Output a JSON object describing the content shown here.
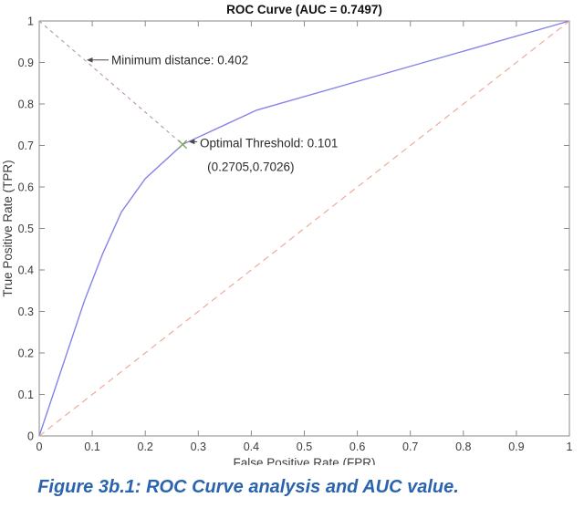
{
  "caption": "Figure 3b.1: ROC Curve analysis and AUC value.",
  "theme": {
    "caption_color": "#2a63ae",
    "axes_color": "#8a8a8a",
    "text_color": "#3c3c3c"
  },
  "chart_data": {
    "type": "line",
    "title": "ROC Curve (AUC = 0.7497)",
    "xlabel": "False Positive Rate (FPR)",
    "ylabel": "True Positive Rate (TPR)",
    "xlim": [
      0,
      1
    ],
    "ylim": [
      0,
      1
    ],
    "grid": false,
    "legend": "none",
    "xticks": [
      "0",
      "0.1",
      "0.2",
      "0.3",
      "0.4",
      "0.5",
      "0.6",
      "0.7",
      "0.8",
      "0.9",
      "1"
    ],
    "yticks": [
      "0",
      "0.1",
      "0.2",
      "0.3",
      "0.4",
      "0.5",
      "0.6",
      "0.7",
      "0.8",
      "0.9",
      "1"
    ],
    "auc": 0.7497,
    "optimal_threshold": 0.101,
    "min_distance": 0.402,
    "optimal_point": {
      "x": 0.2705,
      "y": 0.7026
    },
    "series": [
      {
        "name": "roc-curve",
        "color": "#8583e8",
        "dash": "none",
        "width": 1.4,
        "points": [
          [
            0,
            0
          ],
          [
            0.085,
            0.325
          ],
          [
            0.12,
            0.44
          ],
          [
            0.155,
            0.54
          ],
          [
            0.2,
            0.62
          ],
          [
            0.2705,
            0.7026
          ],
          [
            0.41,
            0.785
          ],
          [
            1,
            1
          ]
        ]
      },
      {
        "name": "chance-diagonal",
        "color": "#eca493",
        "dash": "7 5",
        "width": 1.1,
        "points": [
          [
            0,
            0
          ],
          [
            1,
            1
          ]
        ]
      },
      {
        "name": "min-distance-line",
        "color": "#b593b5",
        "dash": "4 4",
        "width": 1.1,
        "points": [
          [
            0,
            1
          ],
          [
            0.2705,
            0.7026
          ]
        ]
      }
    ],
    "marker": {
      "name": "optimal-point-marker",
      "shape": "x",
      "color": "#7ba45c",
      "x": 0.2705,
      "y": 0.7026
    },
    "annotations": [
      {
        "text": "Minimum distance: 0.402",
        "x": 0.136,
        "y": 0.906,
        "arrow": {
          "from_x": 0.131,
          "tip_x": 0.0895,
          "tip_y": 0.906
        }
      },
      {
        "text": "Optimal Threshold: 0.101",
        "x": 0.303,
        "y": 0.706,
        "arrow": {
          "from_x": 0.298,
          "tip_x": 0.282,
          "tip_y": 0.709
        }
      },
      {
        "text": "(0.2705,0.7026)",
        "x": 0.317,
        "y": 0.648,
        "arrow": null
      }
    ]
  }
}
